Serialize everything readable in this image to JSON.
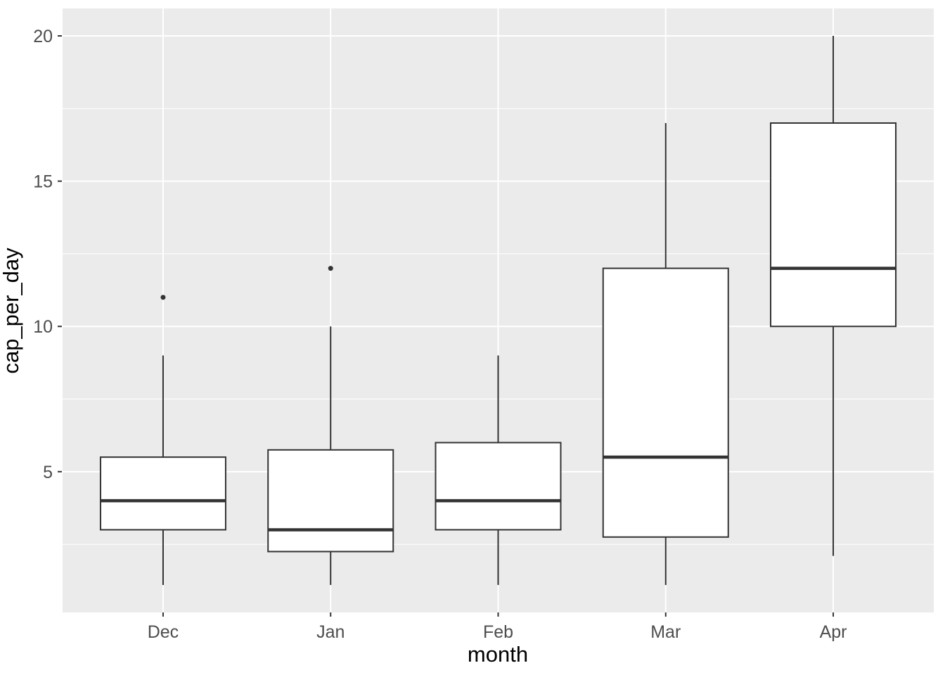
{
  "chart_data": {
    "type": "boxplot",
    "title": "",
    "xlabel": "month",
    "ylabel": "cap_per_day",
    "categories": [
      "Dec",
      "Jan",
      "Feb",
      "Mar",
      "Apr"
    ],
    "series": [
      {
        "category": "Dec",
        "whisker_low": 1.1,
        "q1": 3,
        "median": 4,
        "q3": 5.5,
        "whisker_high": 9,
        "outliers": [
          11
        ]
      },
      {
        "category": "Jan",
        "whisker_low": 1.1,
        "q1": 2.25,
        "median": 3,
        "q3": 5.75,
        "whisker_high": 10,
        "outliers": [
          12
        ]
      },
      {
        "category": "Feb",
        "whisker_low": 1.1,
        "q1": 3,
        "median": 4,
        "q3": 6,
        "whisker_high": 9,
        "outliers": []
      },
      {
        "category": "Mar",
        "whisker_low": 1.1,
        "q1": 2.75,
        "median": 5.5,
        "q3": 12,
        "whisker_high": 17,
        "outliers": []
      },
      {
        "category": "Apr",
        "whisker_low": 2.1,
        "q1": 10,
        "median": 12,
        "q3": 17,
        "whisker_high": 20,
        "outliers": []
      }
    ],
    "y_axis": {
      "tick_values": [
        5,
        10,
        15,
        20
      ],
      "tick_labels": [
        "5",
        "10",
        "15",
        "20"
      ],
      "minor_gridlines": [
        2.5,
        7.5,
        12.5,
        17.5
      ],
      "shown_range": [
        0.155,
        20.945
      ]
    },
    "x_axis": {
      "tick_labels": [
        "Dec",
        "Jan",
        "Feb",
        "Mar",
        "Apr"
      ]
    },
    "legend": "none",
    "grid": true
  },
  "style": {
    "panel_bg": "#EBEBEB",
    "gridline": "#FFFFFF",
    "box_stroke": "#333333",
    "box_fill": "#FFFFFF",
    "median_stroke": "#333333",
    "outlier_fill": "#333333",
    "tick_mark": "#333333",
    "tick_label_color": "#4D4D4D",
    "axis_title_color": "#000000"
  }
}
